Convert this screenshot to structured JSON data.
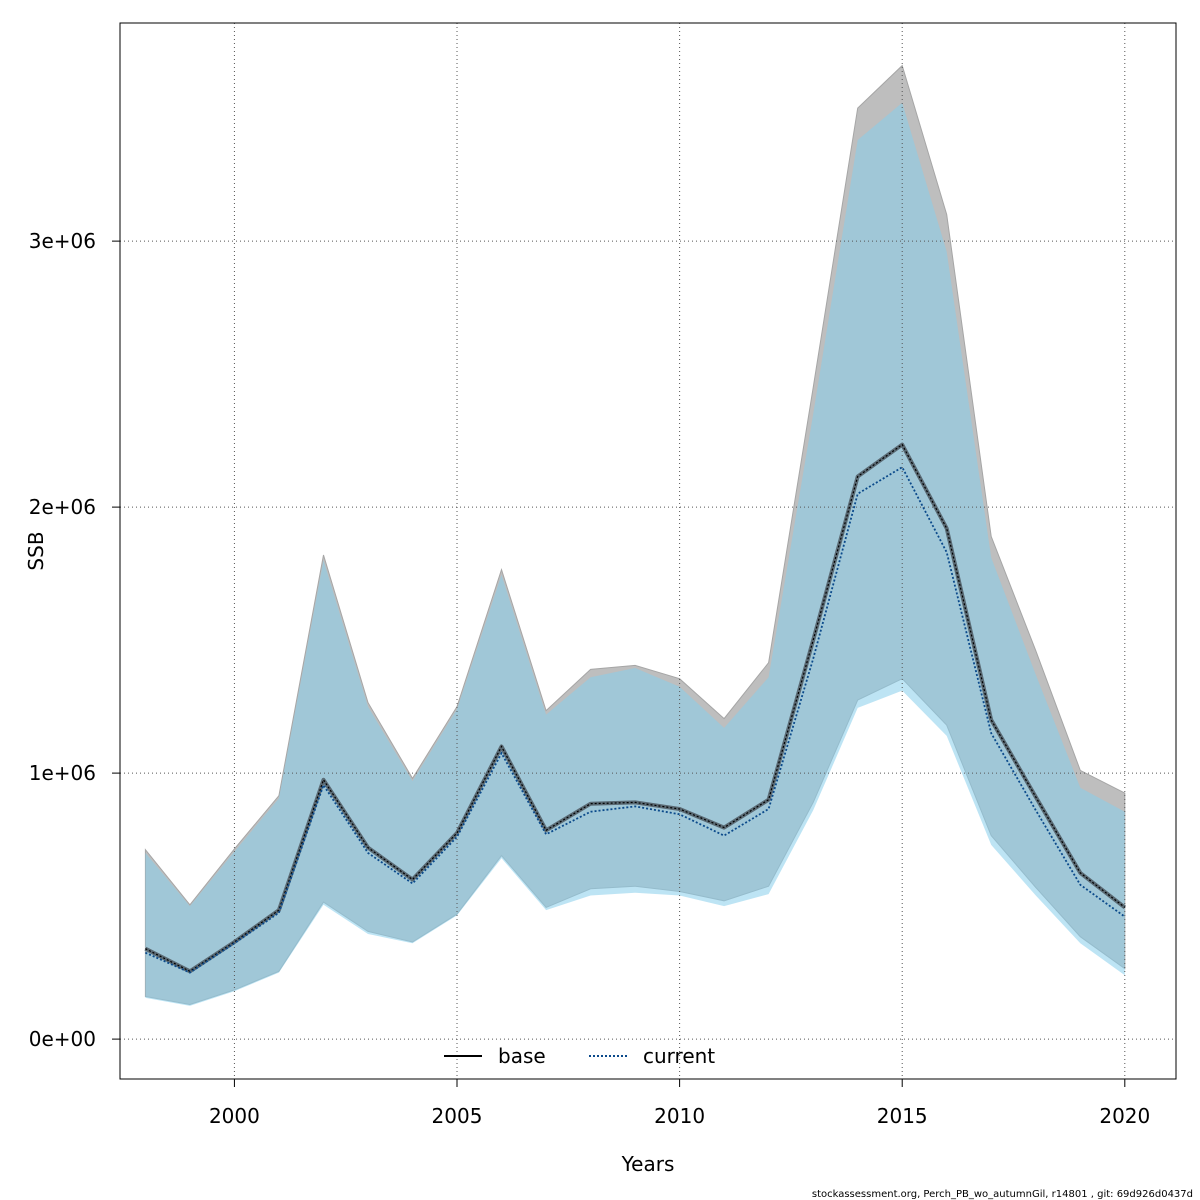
{
  "chart_data": {
    "type": "area",
    "xlabel": "Years",
    "ylabel": "SSB",
    "xlim": [
      1997.43,
      2021.15
    ],
    "ylim": [
      -150000,
      3820000
    ],
    "x_ticks": [
      2000,
      2005,
      2010,
      2015,
      2020
    ],
    "x_tick_labels": [
      "2000",
      "2005",
      "2010",
      "2015",
      "2020"
    ],
    "y_ticks": [
      0,
      1000000,
      2000000,
      3000000
    ],
    "y_tick_labels": [
      "0e+00",
      "1e+06",
      "2e+06",
      "3e+06"
    ],
    "grid": true,
    "legend_position": "bottom",
    "x": [
      1998,
      1999,
      2000,
      2001,
      2002,
      2003,
      2004,
      2005,
      2006,
      2007,
      2008,
      2009,
      2010,
      2011,
      2012,
      2013,
      2014,
      2015,
      2016,
      2017,
      2018,
      2019,
      2020
    ],
    "series": [
      {
        "name": "base",
        "line_style": "solid",
        "color": "#000000",
        "band_color": "#bebebe",
        "values": [
          340000,
          255000,
          365000,
          485000,
          975000,
          720000,
          600000,
          775000,
          1100000,
          785000,
          885000,
          890000,
          865000,
          795000,
          900000,
          1500000,
          2115000,
          2235000,
          1920000,
          1200000,
          910000,
          625000,
          495000
        ],
        "upper": [
          712000,
          505000,
          715000,
          915000,
          1820000,
          1265000,
          980000,
          1250000,
          1765000,
          1235000,
          1390000,
          1405000,
          1355000,
          1205000,
          1415000,
          2450000,
          3500000,
          3660000,
          3100000,
          1890000,
          1460000,
          1010000,
          925000
        ],
        "lower": [
          160000,
          130000,
          185000,
          255000,
          515000,
          405000,
          365000,
          470000,
          690000,
          495000,
          565000,
          575000,
          555000,
          520000,
          575000,
          890000,
          1275000,
          1355000,
          1180000,
          765000,
          570000,
          385000,
          265000
        ]
      },
      {
        "name": "current",
        "line_style": "dotted",
        "color": "#0b4a8b",
        "band_color": "#87ceeb",
        "values": [
          325000,
          250000,
          360000,
          475000,
          955000,
          700000,
          585000,
          760000,
          1075000,
          770000,
          855000,
          875000,
          845000,
          765000,
          865000,
          1430000,
          2050000,
          2150000,
          1830000,
          1150000,
          860000,
          580000,
          460000
        ],
        "upper": [
          700000,
          500000,
          705000,
          905000,
          1800000,
          1250000,
          970000,
          1240000,
          1745000,
          1220000,
          1360000,
          1395000,
          1325000,
          1170000,
          1360000,
          2350000,
          3380000,
          3520000,
          2960000,
          1810000,
          1370000,
          945000,
          855000
        ],
        "lower": [
          155000,
          125000,
          180000,
          250000,
          505000,
          395000,
          360000,
          465000,
          680000,
          485000,
          540000,
          550000,
          540000,
          500000,
          545000,
          860000,
          1245000,
          1310000,
          1140000,
          730000,
          540000,
          360000,
          240000
        ]
      }
    ]
  },
  "footer": "stockassessment.org, Perch_PB_wo_autumnGil, r14801 , git: 69d926d0437d"
}
